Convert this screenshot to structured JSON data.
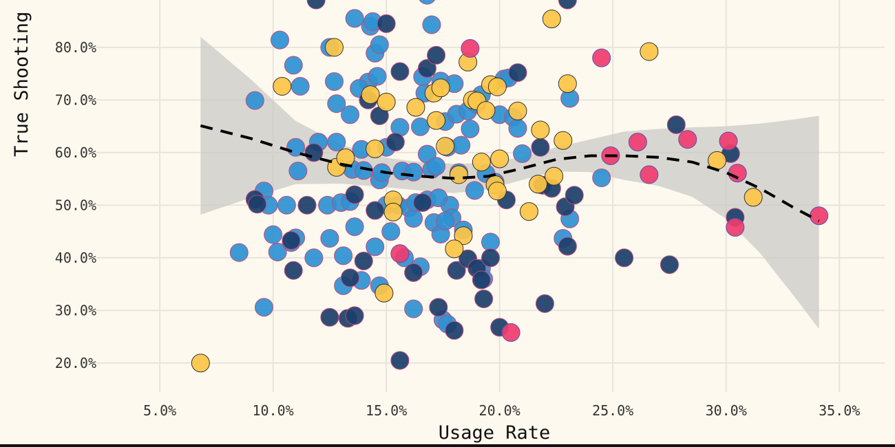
{
  "chart_data": {
    "type": "scatter",
    "title": "",
    "xlabel": "Usage Rate",
    "ylabel": "True Shooting",
    "xlim": [
      0.022,
      0.37
    ],
    "ylim": [
      0.145,
      0.89
    ],
    "x_ticks": [
      0.05,
      0.1,
      0.15,
      0.2,
      0.25,
      0.3,
      0.35
    ],
    "x_tick_labels": [
      "5.0%",
      "10.0%",
      "15.0%",
      "20.0%",
      "25.0%",
      "30.0%",
      "35.0%"
    ],
    "y_ticks": [
      0.2,
      0.3,
      0.4,
      0.5,
      0.6,
      0.7,
      0.8
    ],
    "y_tick_labels": [
      "20.0%",
      "30.0%",
      "40.0%",
      "50.0%",
      "60.0%",
      "70.0%",
      "80.0%"
    ],
    "grid": true,
    "legend": "none",
    "colors": {
      "background": "#fdf9ee",
      "grid": "#e6e4de",
      "blue": "#2e91d3",
      "navy": "#1b3e6a",
      "yellow": "#fcc546",
      "pink": "#ef3c6e",
      "band": "#cbcac5",
      "trend": "#000000"
    },
    "series": [
      {
        "color_key": "blue",
        "points": [
          [
            0.092,
            0.699
          ],
          [
            0.096,
            0.527
          ],
          [
            0.098,
            0.5
          ],
          [
            0.096,
            0.306
          ],
          [
            0.085,
            0.41
          ],
          [
            0.1,
            0.444
          ],
          [
            0.102,
            0.411
          ],
          [
            0.108,
            0.429
          ],
          [
            0.11,
            0.438
          ],
          [
            0.111,
            0.565
          ],
          [
            0.11,
            0.61
          ],
          [
            0.112,
            0.726
          ],
          [
            0.103,
            0.814
          ],
          [
            0.109,
            0.766
          ],
          [
            0.106,
            0.5
          ],
          [
            0.118,
            0.4
          ],
          [
            0.12,
            0.62
          ],
          [
            0.125,
            0.8
          ],
          [
            0.127,
            0.735
          ],
          [
            0.128,
            0.693
          ],
          [
            0.125,
            0.437
          ],
          [
            0.124,
            0.5
          ],
          [
            0.128,
            0.62
          ],
          [
            0.13,
            0.505
          ],
          [
            0.131,
            0.404
          ],
          [
            0.131,
            0.347
          ],
          [
            0.134,
            0.672
          ],
          [
            0.135,
            0.568
          ],
          [
            0.134,
            0.507
          ],
          [
            0.136,
            0.459
          ],
          [
            0.139,
            0.606
          ],
          [
            0.139,
            0.357
          ],
          [
            0.14,
            0.566
          ],
          [
            0.142,
            0.734
          ],
          [
            0.143,
            0.84
          ],
          [
            0.144,
            0.849
          ],
          [
            0.145,
            0.789
          ],
          [
            0.146,
            0.745
          ],
          [
            0.147,
            0.805
          ],
          [
            0.147,
            0.548
          ],
          [
            0.148,
            0.562
          ],
          [
            0.145,
            0.421
          ],
          [
            0.147,
            0.347
          ],
          [
            0.15,
            0.61
          ],
          [
            0.15,
            0.5
          ],
          [
            0.152,
            0.45
          ],
          [
            0.155,
            0.5
          ],
          [
            0.156,
            0.648
          ],
          [
            0.157,
            0.565
          ],
          [
            0.158,
            0.4
          ],
          [
            0.16,
            0.495
          ],
          [
            0.162,
            0.475
          ],
          [
            0.162,
            0.563
          ],
          [
            0.165,
            0.649
          ],
          [
            0.166,
            0.744
          ],
          [
            0.167,
            0.713
          ],
          [
            0.168,
            0.597
          ],
          [
            0.168,
            0.51
          ],
          [
            0.165,
            0.383
          ],
          [
            0.162,
            0.303
          ],
          [
            0.17,
            0.843
          ],
          [
            0.17,
            0.568
          ],
          [
            0.172,
            0.574
          ],
          [
            0.171,
            0.467
          ],
          [
            0.174,
            0.445
          ],
          [
            0.174,
            0.736
          ],
          [
            0.176,
            0.659
          ],
          [
            0.177,
            0.61
          ],
          [
            0.178,
            0.5
          ],
          [
            0.179,
            0.476
          ],
          [
            0.18,
            0.731
          ],
          [
            0.181,
            0.673
          ],
          [
            0.183,
            0.614
          ],
          [
            0.182,
            0.562
          ],
          [
            0.184,
            0.453
          ],
          [
            0.186,
            0.679
          ],
          [
            0.187,
            0.645
          ],
          [
            0.189,
            0.528
          ],
          [
            0.19,
            0.692
          ],
          [
            0.192,
            0.71
          ],
          [
            0.194,
            0.56
          ],
          [
            0.196,
            0.43
          ],
          [
            0.198,
            0.544
          ],
          [
            0.2,
            0.672
          ],
          [
            0.202,
            0.74
          ],
          [
            0.204,
            0.742
          ],
          [
            0.206,
            0.667
          ],
          [
            0.208,
            0.646
          ],
          [
            0.21,
            0.598
          ],
          [
            0.175,
            0.282
          ],
          [
            0.177,
            0.274
          ],
          [
            0.192,
            0.38
          ],
          [
            0.193,
            0.36
          ],
          [
            0.136,
            0.855
          ],
          [
            0.163,
            0.505
          ],
          [
            0.168,
            0.899
          ],
          [
            0.231,
            0.703
          ],
          [
            0.231,
            0.474
          ],
          [
            0.228,
            0.437
          ],
          [
            0.245,
            0.552
          ],
          [
            0.138,
            0.722
          ],
          [
            0.173,
            0.514
          ],
          [
            0.176,
            0.47
          ]
        ]
      },
      {
        "color_key": "navy",
        "points": [
          [
            0.092,
            0.511
          ],
          [
            0.093,
            0.502
          ],
          [
            0.108,
            0.433
          ],
          [
            0.109,
            0.376
          ],
          [
            0.115,
            0.5
          ],
          [
            0.118,
            0.6
          ],
          [
            0.119,
            0.89
          ],
          [
            0.125,
            0.287
          ],
          [
            0.133,
            0.285
          ],
          [
            0.134,
            0.362
          ],
          [
            0.136,
            0.29
          ],
          [
            0.136,
            0.52
          ],
          [
            0.14,
            0.394
          ],
          [
            0.142,
            0.7
          ],
          [
            0.145,
            0.49
          ],
          [
            0.147,
            0.67
          ],
          [
            0.15,
            0.845
          ],
          [
            0.154,
            0.62
          ],
          [
            0.156,
            0.754
          ],
          [
            0.156,
            0.205
          ],
          [
            0.162,
            0.372
          ],
          [
            0.166,
            0.505
          ],
          [
            0.168,
            0.76
          ],
          [
            0.172,
            0.785
          ],
          [
            0.173,
            0.306
          ],
          [
            0.18,
            0.262
          ],
          [
            0.181,
            0.376
          ],
          [
            0.186,
            0.398
          ],
          [
            0.19,
            0.38
          ],
          [
            0.192,
            0.358
          ],
          [
            0.193,
            0.322
          ],
          [
            0.196,
            0.4
          ],
          [
            0.2,
            0.268
          ],
          [
            0.203,
            0.51
          ],
          [
            0.208,
            0.752
          ],
          [
            0.218,
            0.61
          ],
          [
            0.219,
            0.538
          ],
          [
            0.22,
            0.313
          ],
          [
            0.223,
            0.532
          ],
          [
            0.229,
            0.497
          ],
          [
            0.23,
            0.422
          ],
          [
            0.233,
            0.519
          ],
          [
            0.23,
            0.89
          ],
          [
            0.255,
            0.4
          ],
          [
            0.275,
            0.387
          ],
          [
            0.278,
            0.653
          ],
          [
            0.302,
            0.598
          ],
          [
            0.304,
            0.477
          ]
        ]
      },
      {
        "color_key": "yellow",
        "points": [
          [
            0.068,
            0.2
          ],
          [
            0.104,
            0.726
          ],
          [
            0.127,
            0.8
          ],
          [
            0.128,
            0.572
          ],
          [
            0.132,
            0.59
          ],
          [
            0.143,
            0.71
          ],
          [
            0.145,
            0.607
          ],
          [
            0.15,
            0.696
          ],
          [
            0.153,
            0.51
          ],
          [
            0.153,
            0.487
          ],
          [
            0.149,
            0.333
          ],
          [
            0.163,
            0.686
          ],
          [
            0.171,
            0.713
          ],
          [
            0.172,
            0.661
          ],
          [
            0.174,
            0.723
          ],
          [
            0.176,
            0.612
          ],
          [
            0.182,
            0.558
          ],
          [
            0.184,
            0.442
          ],
          [
            0.186,
            0.772
          ],
          [
            0.188,
            0.7
          ],
          [
            0.19,
            0.698
          ],
          [
            0.192,
            0.582
          ],
          [
            0.194,
            0.68
          ],
          [
            0.196,
            0.729
          ],
          [
            0.198,
            0.539
          ],
          [
            0.199,
            0.527
          ],
          [
            0.199,
            0.725
          ],
          [
            0.2,
            0.588
          ],
          [
            0.208,
            0.679
          ],
          [
            0.213,
            0.488
          ],
          [
            0.217,
            0.54
          ],
          [
            0.218,
            0.643
          ],
          [
            0.223,
            0.854
          ],
          [
            0.224,
            0.555
          ],
          [
            0.228,
            0.623
          ],
          [
            0.23,
            0.731
          ],
          [
            0.266,
            0.792
          ],
          [
            0.296,
            0.585
          ],
          [
            0.312,
            0.515
          ],
          [
            0.18,
            0.417
          ]
        ]
      },
      {
        "color_key": "pink",
        "points": [
          [
            0.156,
            0.408
          ],
          [
            0.187,
            0.798
          ],
          [
            0.245,
            0.78
          ],
          [
            0.249,
            0.594
          ],
          [
            0.261,
            0.62
          ],
          [
            0.266,
            0.558
          ],
          [
            0.283,
            0.625
          ],
          [
            0.301,
            0.622
          ],
          [
            0.305,
            0.561
          ],
          [
            0.304,
            0.458
          ],
          [
            0.341,
            0.48
          ],
          [
            0.205,
            0.258
          ]
        ]
      }
    ],
    "trend_line": {
      "style": "dashed",
      "x": [
        0.068,
        0.09,
        0.11,
        0.13,
        0.15,
        0.165,
        0.18,
        0.195,
        0.21,
        0.225,
        0.24,
        0.255,
        0.27,
        0.285,
        0.3,
        0.315,
        0.33,
        0.341
      ],
      "y": [
        0.651,
        0.627,
        0.6,
        0.578,
        0.562,
        0.555,
        0.551,
        0.555,
        0.57,
        0.587,
        0.594,
        0.594,
        0.591,
        0.582,
        0.562,
        0.532,
        0.495,
        0.47
      ],
      "ci_upper": [
        0.82,
        0.74,
        0.66,
        0.615,
        0.59,
        0.582,
        0.579,
        0.58,
        0.592,
        0.61,
        0.625,
        0.64,
        0.645,
        0.648,
        0.65,
        0.655,
        0.663,
        0.67
      ],
      "ci_lower": [
        0.482,
        0.514,
        0.54,
        0.541,
        0.534,
        0.528,
        0.523,
        0.53,
        0.548,
        0.564,
        0.563,
        0.548,
        0.537,
        0.516,
        0.474,
        0.409,
        0.327,
        0.265
      ]
    }
  }
}
